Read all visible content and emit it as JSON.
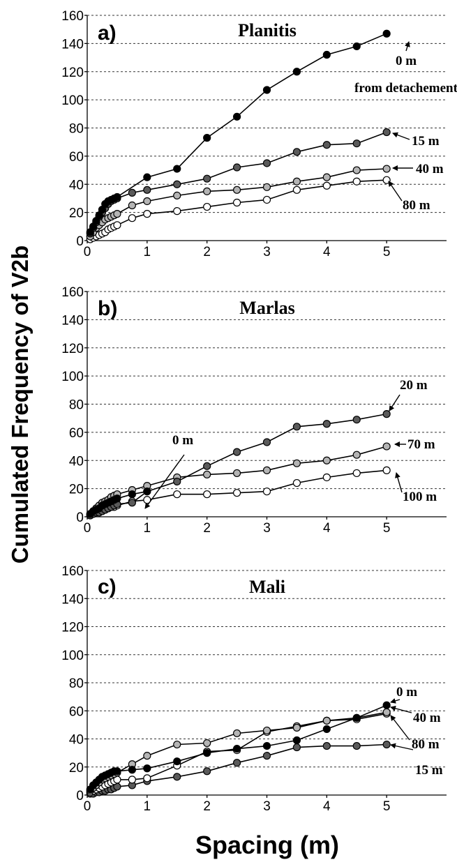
{
  "axis_labels": {
    "y": "Cumulated Frequency of V2b",
    "x": "Spacing (m)"
  },
  "colors": {
    "black": "#000000",
    "dark_gray": "#5a5a5a",
    "light_gray": "#b4b4b4",
    "white": "#ffffff"
  },
  "chart_data": [
    {
      "type": "line",
      "panel": "a)",
      "title": "Planitis",
      "xlabel": "Spacing (m)",
      "ylabel": "Cumulated Frequency of V2b",
      "xlim": [
        0,
        6
      ],
      "ylim": [
        0,
        160
      ],
      "x_ticks": [
        "0",
        "1",
        "2",
        "3",
        "4",
        "5"
      ],
      "y_ticks": [
        "0",
        "20",
        "40",
        "60",
        "80",
        "100",
        "120",
        "140",
        "160"
      ],
      "grid": "horizontal dashed",
      "series": [
        {
          "name": "0 m",
          "color": "black",
          "x": [
            0.05,
            0.1,
            0.15,
            0.2,
            0.25,
            0.3,
            0.35,
            0.4,
            0.45,
            0.5,
            1,
            1.5,
            2,
            2.5,
            3,
            3.5,
            4,
            4.5,
            5
          ],
          "y": [
            6,
            10,
            14,
            18,
            22,
            26,
            28,
            29,
            30,
            31,
            45,
            51,
            73,
            88,
            107,
            120,
            132,
            138,
            147
          ]
        },
        {
          "name": "15 m",
          "color": "dark_gray",
          "x": [
            0.05,
            0.1,
            0.15,
            0.2,
            0.25,
            0.3,
            0.35,
            0.4,
            0.45,
            0.5,
            0.75,
            1,
            1.5,
            2,
            2.5,
            3,
            3.5,
            4,
            4.5,
            5
          ],
          "y": [
            5,
            9,
            13,
            17,
            20,
            23,
            26,
            28,
            29,
            30,
            34,
            36,
            40,
            44,
            52,
            55,
            63,
            68,
            69,
            77
          ]
        },
        {
          "name": "40 m",
          "color": "light_gray",
          "x": [
            0.05,
            0.1,
            0.15,
            0.2,
            0.25,
            0.3,
            0.35,
            0.4,
            0.45,
            0.5,
            0.75,
            1,
            1.5,
            2,
            2.5,
            3,
            3.5,
            4,
            4.5,
            5
          ],
          "y": [
            3,
            6,
            9,
            11,
            13,
            15,
            16,
            17,
            18,
            19,
            25,
            28,
            32,
            35,
            36,
            38,
            42,
            45,
            50,
            51
          ]
        },
        {
          "name": "80 m",
          "color": "white",
          "x": [
            0.05,
            0.1,
            0.15,
            0.2,
            0.25,
            0.3,
            0.35,
            0.4,
            0.45,
            0.5,
            0.75,
            1,
            1.5,
            2,
            2.5,
            3,
            3.5,
            4,
            4.5,
            5
          ],
          "y": [
            1,
            2,
            3,
            4,
            5,
            6,
            8,
            9,
            10,
            11,
            16,
            19,
            21,
            24,
            27,
            29,
            36,
            39,
            42,
            43
          ]
        }
      ],
      "annotations": [
        {
          "text": "0 m",
          "target_series": 0
        },
        {
          "text": "from detachement"
        },
        {
          "text": "15 m",
          "target_series": 1
        },
        {
          "text": "40 m",
          "target_series": 2
        },
        {
          "text": "80 m",
          "target_series": 3
        }
      ]
    },
    {
      "type": "line",
      "panel": "b)",
      "title": "Marlas",
      "xlabel": "Spacing (m)",
      "ylabel": "Cumulated Frequency of V2b",
      "xlim": [
        0,
        6
      ],
      "ylim": [
        0,
        160
      ],
      "x_ticks": [
        "0",
        "1",
        "2",
        "3",
        "4",
        "5"
      ],
      "y_ticks": [
        "0",
        "20",
        "40",
        "60",
        "80",
        "100",
        "120",
        "140",
        "160"
      ],
      "grid": "horizontal dashed",
      "series": [
        {
          "name": "0 m",
          "color": "black",
          "x": [
            0.05,
            0.1,
            0.15,
            0.2,
            0.25,
            0.3,
            0.35,
            0.4,
            0.45,
            0.5,
            0.75,
            1
          ],
          "y": [
            2,
            4,
            5,
            6,
            8,
            9,
            10,
            11,
            12,
            13,
            16,
            18
          ]
        },
        {
          "name": "20 m",
          "color": "dark_gray",
          "x": [
            0.05,
            0.1,
            0.15,
            0.2,
            0.25,
            0.3,
            0.35,
            0.4,
            0.45,
            0.5,
            0.75,
            1,
            1.5,
            2,
            2.5,
            3,
            3.5,
            4,
            4.5,
            5
          ],
          "y": [
            1,
            2,
            3,
            3,
            4,
            5,
            6,
            7,
            8,
            9,
            10,
            18,
            25,
            36,
            46,
            53,
            64,
            66,
            69,
            73
          ]
        },
        {
          "name": "70 m",
          "color": "light_gray",
          "x": [
            0.05,
            0.1,
            0.15,
            0.2,
            0.25,
            0.3,
            0.35,
            0.4,
            0.45,
            0.5,
            0.75,
            1,
            1.5,
            2,
            2.5,
            3,
            3.5,
            4,
            4.5,
            5
          ],
          "y": [
            2,
            4,
            6,
            8,
            10,
            11,
            12,
            14,
            15,
            16,
            19,
            22,
            28,
            30,
            31,
            33,
            38,
            40,
            44,
            50
          ]
        },
        {
          "name": "100 m",
          "color": "white",
          "x": [
            0.05,
            0.1,
            0.15,
            0.2,
            0.25,
            0.3,
            0.35,
            0.4,
            0.45,
            0.5,
            0.75,
            1,
            1.5,
            2,
            2.5,
            3,
            3.5,
            4,
            4.5,
            5
          ],
          "y": [
            1,
            2,
            3,
            4,
            4,
            5,
            6,
            7,
            7,
            8,
            11,
            12,
            16,
            16,
            17,
            18,
            24,
            28,
            31,
            33
          ]
        }
      ],
      "annotations": [
        {
          "text": "0 m",
          "target_series": 0
        },
        {
          "text": "20 m",
          "target_series": 1
        },
        {
          "text": "70 m",
          "target_series": 2
        },
        {
          "text": "100 m",
          "target_series": 3
        }
      ]
    },
    {
      "type": "line",
      "panel": "c)",
      "title": "Mali",
      "xlabel": "Spacing (m)",
      "ylabel": "Cumulated Frequency of V2b",
      "xlim": [
        0,
        6
      ],
      "ylim": [
        0,
        160
      ],
      "x_ticks": [
        "0",
        "1",
        "2",
        "3",
        "4",
        "5"
      ],
      "y_ticks": [
        "0",
        "20",
        "40",
        "60",
        "80",
        "100",
        "120",
        "140",
        "160"
      ],
      "grid": "horizontal dashed",
      "series": [
        {
          "name": "0 m",
          "color": "black",
          "x": [
            0.05,
            0.1,
            0.15,
            0.2,
            0.25,
            0.3,
            0.35,
            0.4,
            0.45,
            0.5,
            0.75,
            1,
            1.5,
            2,
            2.5,
            3,
            3.5,
            4,
            4.5,
            5
          ],
          "y": [
            4,
            7,
            9,
            11,
            13,
            14,
            15,
            16,
            17,
            17,
            18,
            19,
            24,
            30,
            33,
            35,
            39,
            47,
            55,
            64
          ]
        },
        {
          "name": "40 m",
          "color": "light_gray",
          "x": [
            0.05,
            0.1,
            0.15,
            0.2,
            0.25,
            0.3,
            0.35,
            0.4,
            0.45,
            0.5,
            0.75,
            1,
            1.5,
            2,
            2.5,
            3,
            3.5,
            4,
            4.5,
            5
          ],
          "y": [
            3,
            5,
            7,
            9,
            11,
            12,
            13,
            14,
            15,
            16,
            22,
            28,
            36,
            37,
            44,
            46,
            48,
            53,
            55,
            59
          ]
        },
        {
          "name": "80 m",
          "color": "white",
          "x": [
            0.05,
            0.1,
            0.15,
            0.2,
            0.25,
            0.3,
            0.35,
            0.4,
            0.45,
            0.5,
            0.75,
            1,
            1.5,
            2,
            2.5,
            3,
            3.5,
            4,
            4.5,
            5
          ],
          "y": [
            2,
            3,
            4,
            5,
            6,
            7,
            8,
            9,
            10,
            11,
            11,
            12,
            21,
            31,
            32,
            45,
            49,
            53,
            54,
            58
          ]
        },
        {
          "name": "15 m",
          "color": "dark_gray",
          "x": [
            0.05,
            0.1,
            0.15,
            0.2,
            0.25,
            0.3,
            0.35,
            0.4,
            0.45,
            0.5,
            0.75,
            1,
            1.5,
            2,
            2.5,
            3,
            3.5,
            4,
            4.5,
            5
          ],
          "y": [
            1,
            1,
            2,
            2,
            3,
            3,
            4,
            4,
            5,
            6,
            7,
            10,
            13,
            17,
            23,
            28,
            34,
            35,
            35,
            36
          ]
        }
      ],
      "annotations": [
        {
          "text": "0 m",
          "target_series": 0
        },
        {
          "text": "40 m",
          "target_series": 1
        },
        {
          "text": "80 m",
          "target_series": 2
        },
        {
          "text": "15 m",
          "target_series": 3
        }
      ]
    }
  ]
}
